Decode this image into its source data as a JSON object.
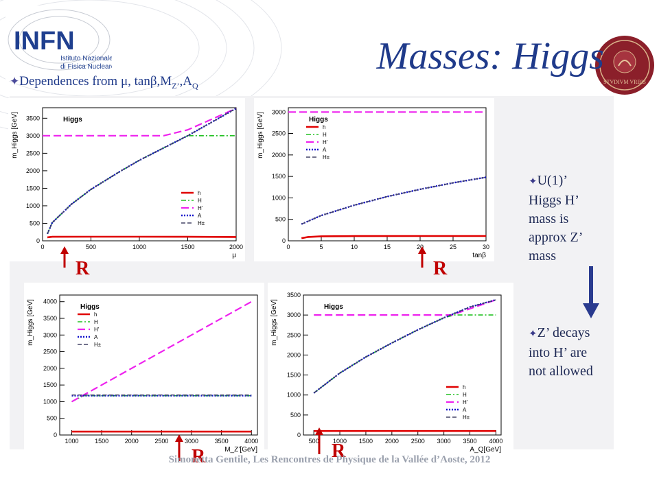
{
  "title": "Masses: Higgs",
  "subtitle": {
    "prefix": "Dependences from  μ, tanβ,M",
    "z_sub": "Z’",
    "mid": ",A",
    "q_sub": "Q"
  },
  "logo_infn": {
    "name": "INFN",
    "line1": "Istituto Nazionale",
    "line2": "di Fisica Nucleare"
  },
  "logo_seal": {
    "text": "STVDIVM VRBIS"
  },
  "side_notes": [
    {
      "lines": [
        "U(1)’",
        "Higgs H’",
        "mass is",
        "approx  Z’",
        "mass"
      ]
    },
    {
      "lines": [
        "Z’ decays",
        "into H’ are",
        "not allowed"
      ]
    }
  ],
  "marker_label": "R",
  "footer": "Simonetta Gentile, Les Rencontres de Physique de la Vallée d’Aoste, 2012",
  "colors": {
    "h": "#e00000",
    "H": "#22c022",
    "Hp": "#ee22ee",
    "A": "#1010cc",
    "Hpm": "#444466"
  },
  "chart_data": [
    {
      "type": "line",
      "panel_title": "Higgs",
      "ylabel": "m_Higgs [GeV]",
      "xlabel": "μ",
      "xlim": [
        0,
        2000
      ],
      "ylim": [
        0,
        3800
      ],
      "xticks": [
        0,
        500,
        1000,
        1500,
        2000
      ],
      "yticks": [
        0,
        500,
        1000,
        1500,
        2000,
        2500,
        3000,
        3500
      ],
      "legend": [
        "h",
        "H",
        "H’",
        "A",
        "H±"
      ],
      "legend_position": "bottom-right",
      "marker_x": 150,
      "series": [
        {
          "name": "h",
          "x": [
            50,
            100,
            500,
            1000,
            1500,
            2000
          ],
          "y": [
            100,
            115,
            118,
            118,
            115,
            110
          ]
        },
        {
          "name": "H",
          "x": [
            50,
            100,
            300,
            500,
            800,
            1000,
            1300,
            1500,
            2000
          ],
          "y": [
            200,
            520,
            1050,
            1470,
            1980,
            2300,
            2720,
            3000,
            3000
          ]
        },
        {
          "name": "H’",
          "x": [
            0,
            1250,
            1500,
            2000
          ],
          "y": [
            3000,
            3000,
            3170,
            3780
          ]
        },
        {
          "name": "A",
          "x": [
            50,
            100,
            300,
            500,
            800,
            1000,
            1300,
            1500,
            2000
          ],
          "y": [
            200,
            520,
            1050,
            1470,
            1980,
            2300,
            2720,
            3000,
            3780
          ]
        },
        {
          "name": "H±",
          "x": [
            50,
            100,
            300,
            500,
            800,
            1000,
            1300,
            1500,
            2000
          ],
          "y": [
            200,
            520,
            1050,
            1470,
            1980,
            2300,
            2720,
            3000,
            3780
          ]
        }
      ]
    },
    {
      "type": "line",
      "panel_title": "Higgs",
      "ylabel": "m_Higgs [GeV]",
      "xlabel": "tanβ",
      "xlim": [
        0,
        30
      ],
      "ylim": [
        0,
        3100
      ],
      "xticks": [
        0,
        5,
        10,
        15,
        20,
        25,
        30
      ],
      "yticks": [
        0,
        500,
        1000,
        1500,
        2000,
        2500,
        3000
      ],
      "legend": [
        "h",
        "H",
        "H’",
        "A",
        "H±"
      ],
      "legend_position": "top-left",
      "marker_x": 20,
      "series": [
        {
          "name": "h",
          "x": [
            2,
            3,
            5,
            10,
            20,
            30
          ],
          "y": [
            60,
            90,
            105,
            110,
            112,
            112
          ]
        },
        {
          "name": "H’",
          "x": [
            0,
            30
          ],
          "y": [
            3000,
            3000
          ]
        },
        {
          "name": "A",
          "x": [
            2,
            5,
            10,
            15,
            20,
            25,
            30
          ],
          "y": [
            390,
            590,
            830,
            1030,
            1200,
            1350,
            1480
          ]
        },
        {
          "name": "H±",
          "x": [
            2,
            5,
            10,
            15,
            20,
            25,
            30
          ],
          "y": [
            390,
            590,
            830,
            1030,
            1200,
            1350,
            1480
          ]
        }
      ]
    },
    {
      "type": "line",
      "panel_title": "Higgs",
      "ylabel": "m_Higgs [GeV]",
      "xlabel": "M_Z’[GeV]",
      "xlim": [
        800,
        4100
      ],
      "ylim": [
        0,
        4200
      ],
      "xticks": [
        1000,
        1500,
        2000,
        2500,
        3000,
        3500,
        4000
      ],
      "yticks": [
        0,
        500,
        1000,
        1500,
        2000,
        2500,
        3000,
        3500,
        4000
      ],
      "legend": [
        "h",
        "H",
        "H’",
        "A",
        "H±"
      ],
      "legend_position": "top-left",
      "marker_x": 2500,
      "series": [
        {
          "name": "h",
          "x": [
            1000,
            4000
          ],
          "y": [
            100,
            100
          ]
        },
        {
          "name": "H",
          "x": [
            1000,
            1200,
            4000
          ],
          "y": [
            1000,
            1180,
            1180
          ]
        },
        {
          "name": "H’",
          "x": [
            1000,
            4000
          ],
          "y": [
            1000,
            4000
          ]
        },
        {
          "name": "A",
          "x": [
            1000,
            4000
          ],
          "y": [
            1180,
            1180
          ]
        },
        {
          "name": "H±",
          "x": [
            1000,
            4000
          ],
          "y": [
            1200,
            1200
          ]
        }
      ]
    },
    {
      "type": "line",
      "panel_title": "Higgs",
      "ylabel": "m_Higgs [GeV]",
      "xlabel": "A_Q[GeV]",
      "xlim": [
        300,
        4100
      ],
      "ylim": [
        0,
        3500
      ],
      "xticks": [
        500,
        1000,
        1500,
        2000,
        2500,
        3000,
        3500,
        4000
      ],
      "yticks": [
        0,
        500,
        1000,
        1500,
        2000,
        2500,
        3000,
        3500
      ],
      "legend": [
        "h",
        "H",
        "H’",
        "A",
        "H±"
      ],
      "legend_position": "bottom-right",
      "marker_x": 500,
      "series": [
        {
          "name": "h",
          "x": [
            500,
            4000
          ],
          "y": [
            100,
            100
          ]
        },
        {
          "name": "H",
          "x": [
            500,
            1000,
            1500,
            2000,
            2500,
            3000,
            3200,
            4000
          ],
          "y": [
            1050,
            1550,
            1950,
            2300,
            2630,
            2930,
            3000,
            3000
          ]
        },
        {
          "name": "H’",
          "x": [
            500,
            3150,
            4000
          ],
          "y": [
            3000,
            3000,
            3380
          ]
        },
        {
          "name": "A",
          "x": [
            500,
            1000,
            1500,
            2000,
            2500,
            3000,
            3500,
            4000
          ],
          "y": [
            1050,
            1550,
            1950,
            2300,
            2630,
            2930,
            3200,
            3380
          ]
        },
        {
          "name": "H±",
          "x": [
            500,
            1000,
            1500,
            2000,
            2500,
            3000,
            3500,
            4000
          ],
          "y": [
            1050,
            1550,
            1950,
            2300,
            2630,
            2930,
            3200,
            3380
          ]
        }
      ]
    }
  ]
}
